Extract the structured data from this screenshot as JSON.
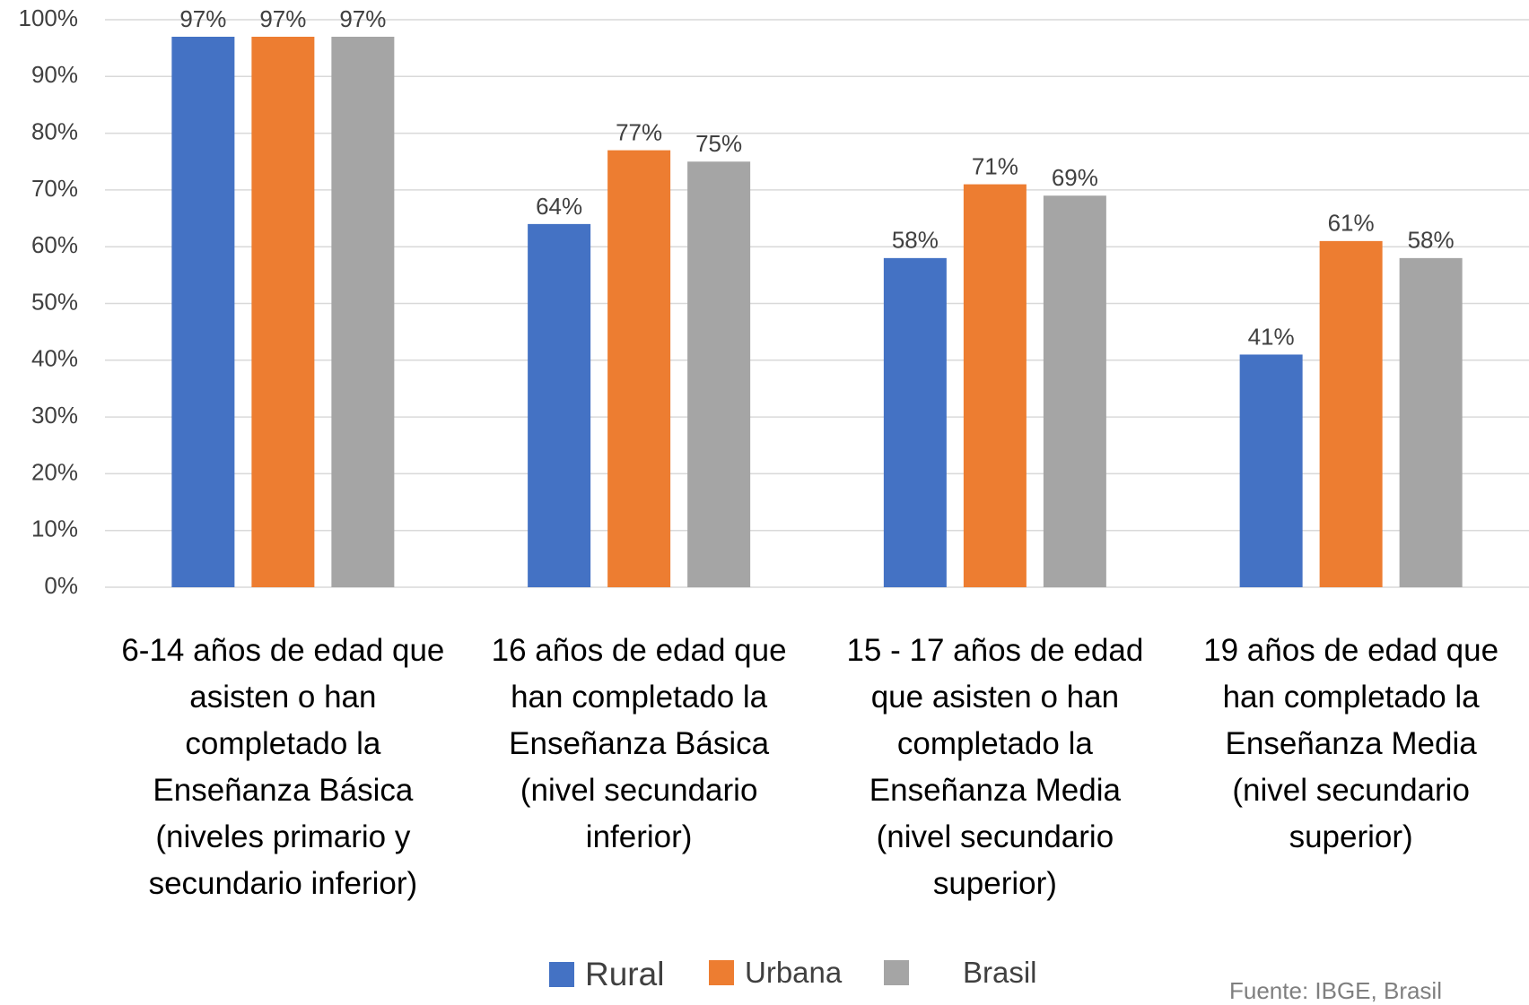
{
  "chart_data": {
    "type": "bar",
    "categories": [
      "6-14 años de edad que asisten o han completado la Enseñanza Básica (niveles primario y secundario inferior)",
      "16 años de edad que han completado la Enseñanza Básica (nivel secundario inferior)",
      "15 - 17 años de edad que asisten o han completado la Enseñanza Media (nivel secundario superior)",
      "19 años de edad que han completado la Enseñanza Media (nivel secundario superior)"
    ],
    "series": [
      {
        "name": "Rural",
        "color": "#4472c4",
        "values": [
          97,
          64,
          58,
          41
        ],
        "value_labels": [
          "97%",
          "64%",
          "58%",
          "41%"
        ]
      },
      {
        "name": "Urbana",
        "color": "#ed7d31",
        "values": [
          97,
          77,
          71,
          61
        ],
        "value_labels": [
          "97%",
          "77%",
          "71%",
          "61%"
        ]
      },
      {
        "name": "Brasil",
        "color": "#a5a5a5",
        "values": [
          97,
          75,
          69,
          58
        ],
        "value_labels": [
          "97%",
          "75%",
          "69%",
          "58%"
        ]
      }
    ],
    "ylim": [
      0,
      100
    ],
    "yticks": [
      {
        "value": 0,
        "label": "0%"
      },
      {
        "value": 10,
        "label": "10%"
      },
      {
        "value": 20,
        "label": "20%"
      },
      {
        "value": 30,
        "label": "30%"
      },
      {
        "value": 40,
        "label": "40%"
      },
      {
        "value": 50,
        "label": "50%"
      },
      {
        "value": 60,
        "label": "60%"
      },
      {
        "value": 70,
        "label": "70%"
      },
      {
        "value": 80,
        "label": "80%"
      },
      {
        "value": 90,
        "label": "90%"
      },
      {
        "value": 100,
        "label": "100%"
      }
    ],
    "grid": true,
    "source": "Fuente: IBGE, Brasil"
  }
}
